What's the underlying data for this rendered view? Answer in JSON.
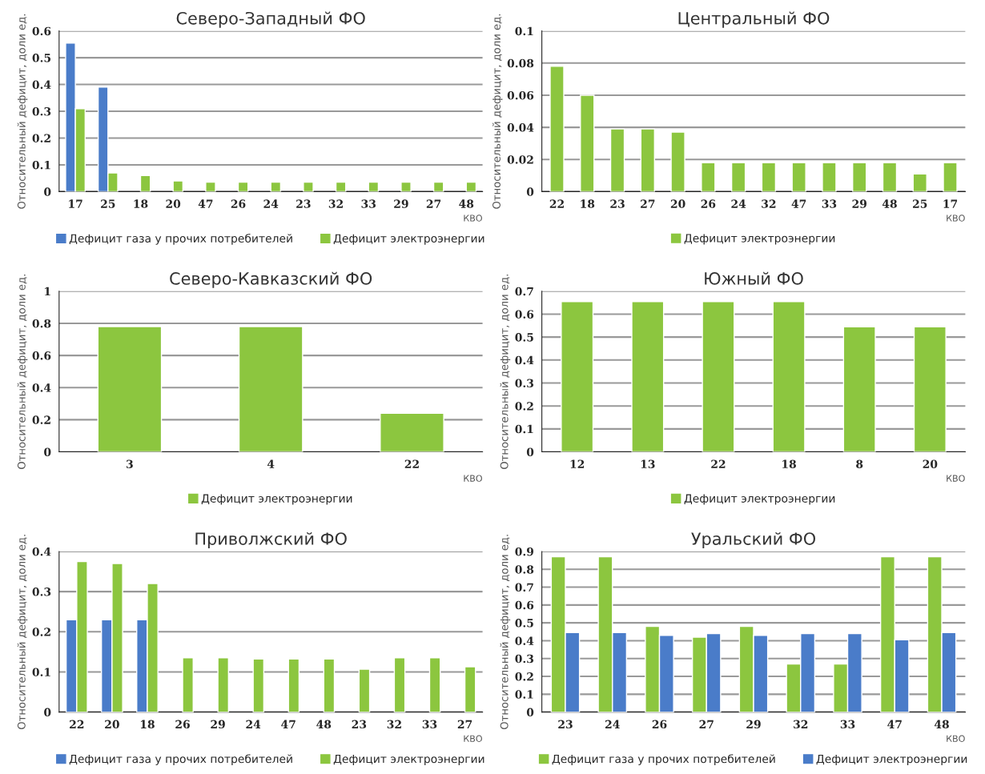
{
  "chart_data": [
    {
      "type": "bar",
      "title": "Северо-Западный ФО",
      "ylabel": "Относительный дефицит, доли ед.",
      "xlabel": "КВО",
      "categories": [
        "17",
        "25",
        "18",
        "20",
        "47",
        "26",
        "24",
        "23",
        "32",
        "33",
        "29",
        "27",
        "48"
      ],
      "series": [
        {
          "name": "Дефицит газа у прочих потребителей",
          "color": "#4a7cc9",
          "values": [
            0.555,
            0.39,
            null,
            null,
            null,
            null,
            null,
            null,
            null,
            null,
            null,
            null,
            null
          ]
        },
        {
          "name": "Дефицит электроэнергии",
          "color": "#8cc63f",
          "values": [
            0.31,
            0.07,
            0.06,
            0.04,
            0.035,
            0.035,
            0.035,
            0.035,
            0.035,
            0.035,
            0.035,
            0.035,
            0.035
          ]
        }
      ],
      "ylim": [
        0,
        0.6
      ],
      "yticks": [
        0,
        0.1,
        0.2,
        0.3,
        0.4,
        0.5,
        0.6
      ],
      "grid": "y",
      "legend": "bottom"
    },
    {
      "type": "bar",
      "title": "Центральный ФО",
      "ylabel": "Относительный дефицит, доли ед.",
      "xlabel": "КВО",
      "categories": [
        "22",
        "18",
        "23",
        "27",
        "20",
        "26",
        "24",
        "32",
        "47",
        "33",
        "29",
        "48",
        "25",
        "17"
      ],
      "series": [
        {
          "name": "Дефицит электроэнергии",
          "color": "#8cc63f",
          "values": [
            0.078,
            0.06,
            0.039,
            0.039,
            0.037,
            0.018,
            0.018,
            0.018,
            0.018,
            0.018,
            0.018,
            0.018,
            0.011,
            0.018
          ]
        }
      ],
      "ylim": [
        0,
        0.1
      ],
      "yticks": [
        0,
        0.02,
        0.04,
        0.06,
        0.08,
        0.1
      ],
      "grid": "y",
      "legend": "bottom"
    },
    {
      "type": "bar",
      "title": "Северо-Кавказский ФО",
      "ylabel": "Относительный дефицит, доли ед.",
      "xlabel": "КВО",
      "categories": [
        "3",
        "4",
        "22"
      ],
      "series": [
        {
          "name": "Дефицит электроэнергии",
          "color": "#8cc63f",
          "values": [
            0.78,
            0.78,
            0.24
          ]
        }
      ],
      "ylim": [
        0,
        1
      ],
      "yticks": [
        0,
        0.2,
        0.4,
        0.6,
        0.8,
        1
      ],
      "grid": "y",
      "legend": "bottom"
    },
    {
      "type": "bar",
      "title": "Южный ФО",
      "ylabel": "Относительный дефицит, доли ед.",
      "xlabel": "КВО",
      "categories": [
        "12",
        "13",
        "22",
        "18",
        "8",
        "20"
      ],
      "series": [
        {
          "name": "Дефицит электроэнергии",
          "color": "#8cc63f",
          "values": [
            0.655,
            0.655,
            0.655,
            0.655,
            0.545,
            0.545
          ]
        }
      ],
      "ylim": [
        0,
        0.7
      ],
      "yticks": [
        0,
        0.1,
        0.2,
        0.3,
        0.4,
        0.5,
        0.6,
        0.7
      ],
      "grid": "y",
      "legend": "bottom"
    },
    {
      "type": "bar",
      "title": "Приволжский ФО",
      "ylabel": "Относительный дефицит, доли ед.",
      "xlabel": "КВО",
      "categories": [
        "22",
        "20",
        "18",
        "26",
        "29",
        "24",
        "47",
        "48",
        "23",
        "32",
        "33",
        "27"
      ],
      "series": [
        {
          "name": "Дефицит газа у прочих потребителей",
          "color": "#4a7cc9",
          "values": [
            0.23,
            0.23,
            0.23,
            null,
            null,
            null,
            null,
            null,
            null,
            null,
            null,
            null
          ]
        },
        {
          "name": "Дефицит электроэнергии",
          "color": "#8cc63f",
          "values": [
            0.375,
            0.37,
            0.32,
            0.135,
            0.135,
            0.132,
            0.132,
            0.132,
            0.107,
            0.135,
            0.135,
            0.113
          ]
        }
      ],
      "ylim": [
        0,
        0.4
      ],
      "yticks": [
        0,
        0.1,
        0.2,
        0.3,
        0.4
      ],
      "grid": "y",
      "legend": "bottom"
    },
    {
      "type": "bar",
      "title": "Уральский ФО",
      "ylabel": "Относительный дефицит, доли ед.",
      "xlabel": "КВО",
      "categories": [
        "23",
        "24",
        "26",
        "27",
        "29",
        "32",
        "33",
        "47",
        "48"
      ],
      "series": [
        {
          "name": "Дефицит газа у прочих потребителей",
          "color": "#8cc63f",
          "values": [
            0.87,
            0.87,
            0.48,
            0.42,
            0.48,
            0.27,
            0.27,
            0.87,
            0.87
          ]
        },
        {
          "name": "Дефицит электроэнергии",
          "color": "#4a7cc9",
          "values": [
            0.445,
            0.445,
            0.43,
            0.44,
            0.43,
            0.44,
            0.44,
            0.405,
            0.445
          ]
        }
      ],
      "ylim": [
        0,
        0.9
      ],
      "yticks": [
        0,
        0.1,
        0.2,
        0.3,
        0.4,
        0.5,
        0.6,
        0.7,
        0.8,
        0.9
      ],
      "grid": "y",
      "legend": "bottom"
    }
  ]
}
